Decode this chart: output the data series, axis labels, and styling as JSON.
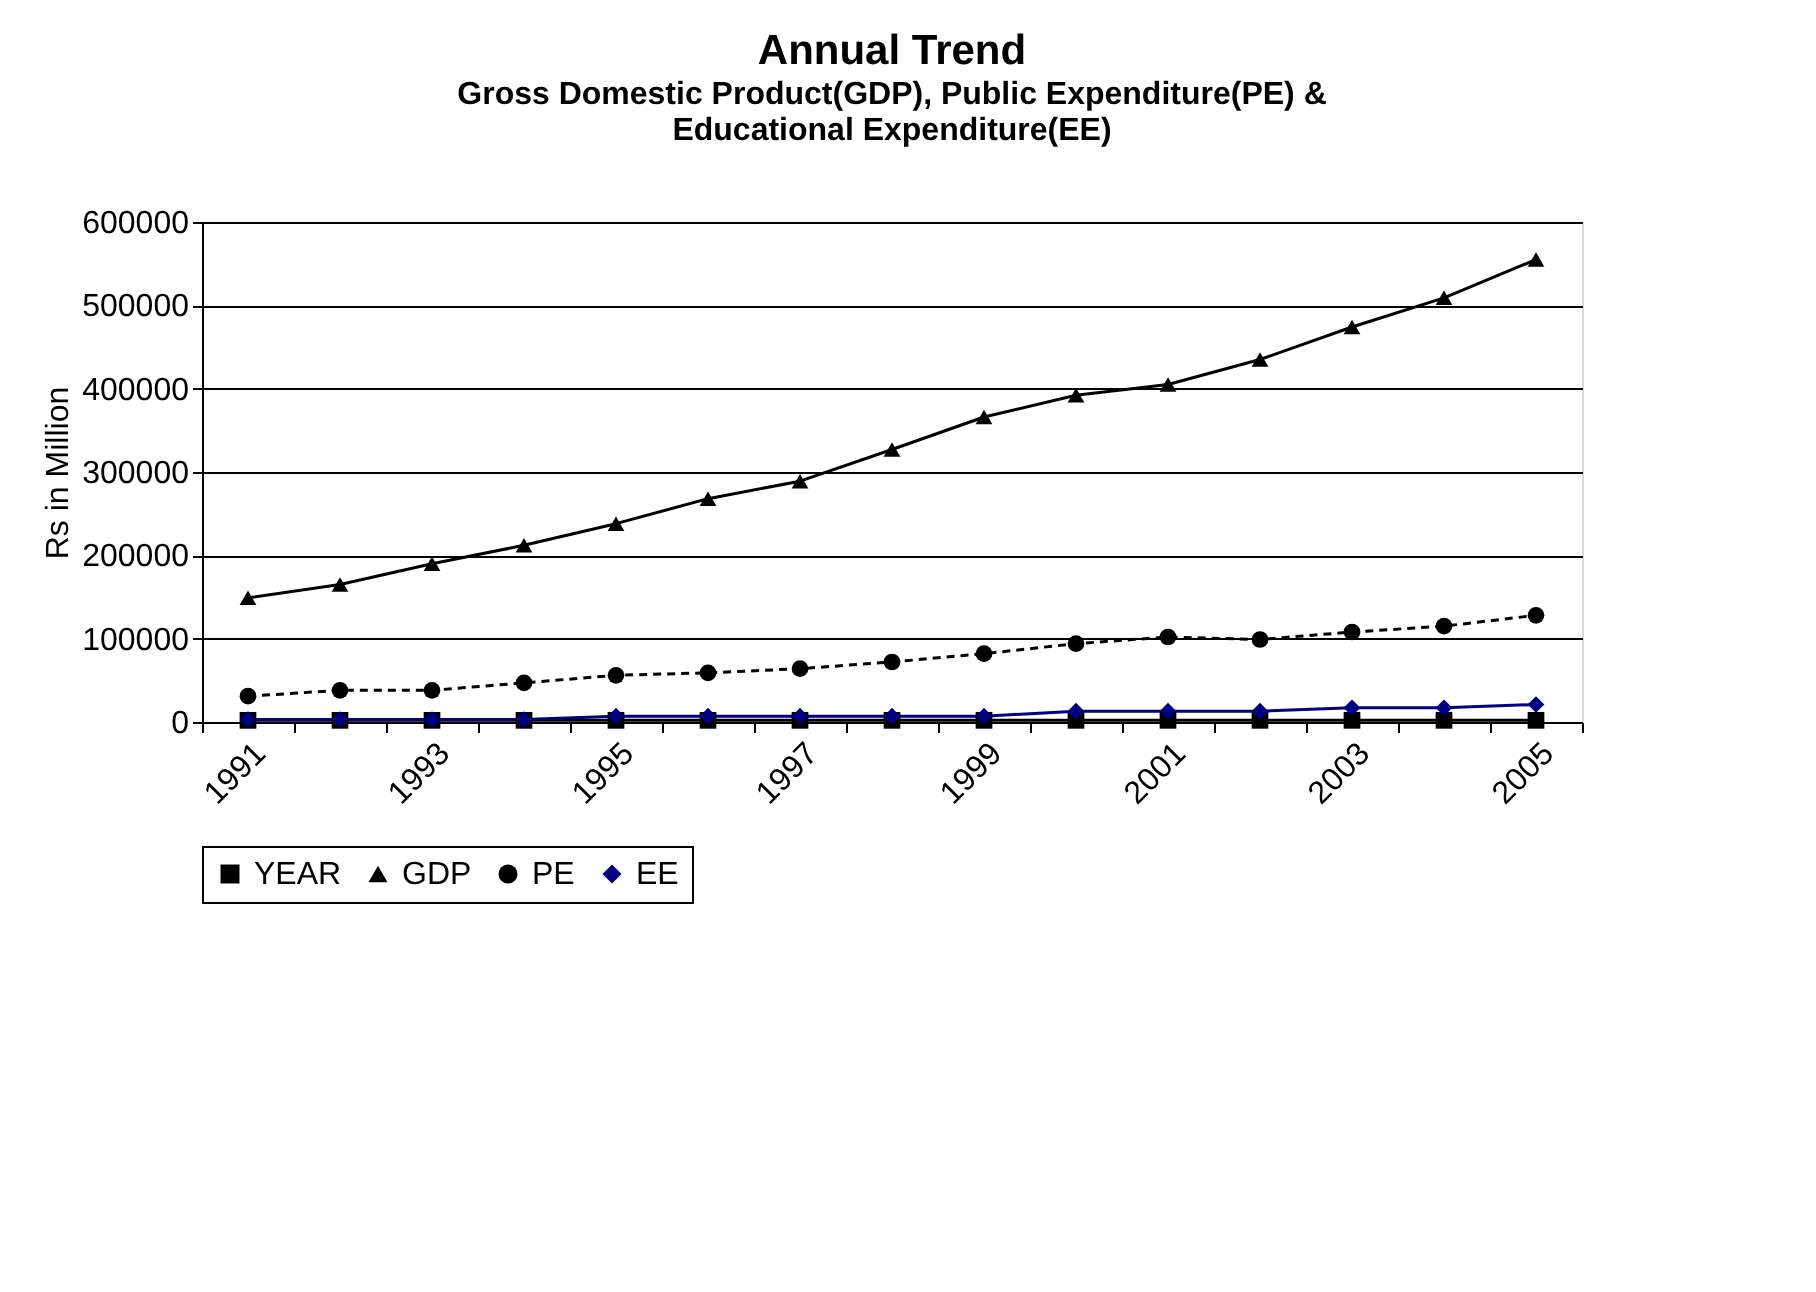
{
  "chart_data": {
    "type": "line",
    "title": "Annual Trend",
    "subtitle": "Gross Domestic Product(GDP), Public Expenditure(PE) & Educational Expenditure(EE)",
    "ylabel": "Rs in Million",
    "categories": [
      "1991",
      null,
      "1993",
      null,
      "1995",
      null,
      "1997",
      null,
      "1999",
      null,
      "2001",
      null,
      "2003",
      null,
      "2005"
    ],
    "series": [
      {
        "name": "YEAR",
        "color": "#000000",
        "marker": "square",
        "line_style": "solid",
        "values": [
          1991,
          1992,
          1993,
          1994,
          1995,
          1996,
          1997,
          1998,
          1999,
          2000,
          2001,
          2002,
          2003,
          2004,
          2005
        ]
      },
      {
        "name": "GDP",
        "color": "#000000",
        "marker": "triangle",
        "line_style": "solid",
        "values": [
          149000,
          165000,
          190000,
          212000,
          238000,
          268000,
          289000,
          327000,
          366000,
          392000,
          405000,
          435000,
          474000,
          509000,
          555000
        ]
      },
      {
        "name": "PE",
        "color": "#000000",
        "marker": "circle",
        "line_style": "dashed",
        "values": [
          31000,
          38000,
          38000,
          47000,
          56000,
          59000,
          64000,
          72000,
          82000,
          94000,
          102000,
          99000,
          108000,
          115000,
          128000
        ]
      },
      {
        "name": "EE",
        "color": "#000080",
        "marker": "diamond",
        "line_style": "solid",
        "values": [
          3000,
          3000,
          3000,
          3000,
          7000,
          7000,
          7000,
          7000,
          7000,
          13000,
          13000,
          13000,
          17000,
          17000,
          21000
        ]
      }
    ],
    "ylim": [
      0,
      600000
    ],
    "yticks": [
      0,
      100000,
      200000,
      300000,
      400000,
      500000,
      600000
    ],
    "grid": "y",
    "legend": "bottom"
  }
}
